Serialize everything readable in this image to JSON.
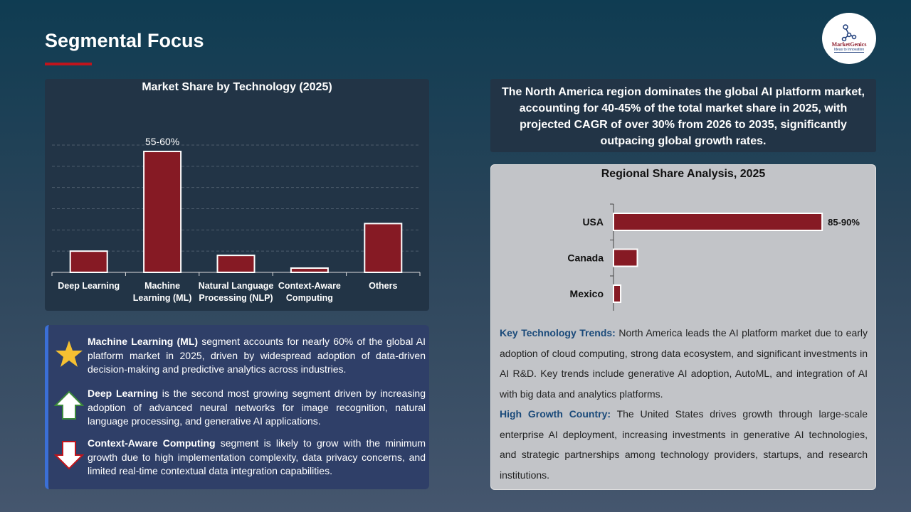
{
  "header": {
    "title": "Segmental Focus",
    "logo_name": "MarketGenics",
    "logo_tagline": "Ideas to Innovation"
  },
  "chart_data": [
    {
      "type": "bar",
      "title": "Market Share by Technology (2025)",
      "categories": [
        "Deep Learning",
        "Machine Learning (ML)",
        "Natural Language Processing (NLP)",
        "Context-Aware Computing",
        "Others"
      ],
      "category_lines": [
        [
          "Deep Learning"
        ],
        [
          "Machine",
          "Learning (ML)"
        ],
        [
          "Natural Language",
          "Processing (NLP)"
        ],
        [
          "Context-Aware",
          "Computing"
        ],
        [
          "Others"
        ]
      ],
      "values": [
        10,
        57,
        8,
        2,
        23
      ],
      "data_labels": [
        "",
        "55-60%",
        "",
        "",
        ""
      ],
      "ylim": [
        0,
        60
      ],
      "grid": true,
      "color": "#861a24"
    },
    {
      "type": "bar",
      "orientation": "horizontal",
      "title": "Regional Share Analysis, 2025",
      "categories": [
        "USA",
        "Canada",
        "Mexico"
      ],
      "values": [
        87.5,
        10,
        3
      ],
      "data_labels": [
        "85-90%",
        "",
        ""
      ],
      "xlim": [
        0,
        100
      ],
      "grid": false,
      "color": "#861a24"
    }
  ],
  "summary": "The North America region dominates the global AI platform market, accounting for 40-45% of the total market share in 2025, with projected CAGR of over 30% from 2026 to 2035, significantly outpacing global growth rates.",
  "insights": [
    {
      "icon": "star-icon",
      "bold": "Machine Learning (ML)",
      "text": " segment accounts for nearly 60% of the global AI platform market in 2025, driven by widespread adoption of data-driven decision-making and predictive analytics across industries."
    },
    {
      "icon": "arrow-up-icon",
      "bold": "Deep Learning",
      "text": " is the second most growing segment driven by increasing adoption of advanced neural networks for image recognition, natural language processing, and generative AI applications."
    },
    {
      "icon": "arrow-down-icon",
      "bold": "Context-Aware Computing",
      "text": " segment is likely to grow with the minimum growth due to high implementation complexity, data privacy concerns, and limited real-time contextual data integration capabilities."
    }
  ],
  "trends": {
    "label1": "Key Technology Trends:",
    "text1": " North America leads the AI platform market due to early adoption of cloud computing, strong data ecosystem, and significant investments in AI R&D. Key trends include generative AI adoption, AutoML, and integration of AI with big data and analytics platforms.",
    "label2": "High Growth Country:",
    "text2": " The United States drives growth through large-scale enterprise AI deployment, increasing investments in generative AI technologies, and strategic partnerships among technology providers, startups, and research institutions."
  }
}
